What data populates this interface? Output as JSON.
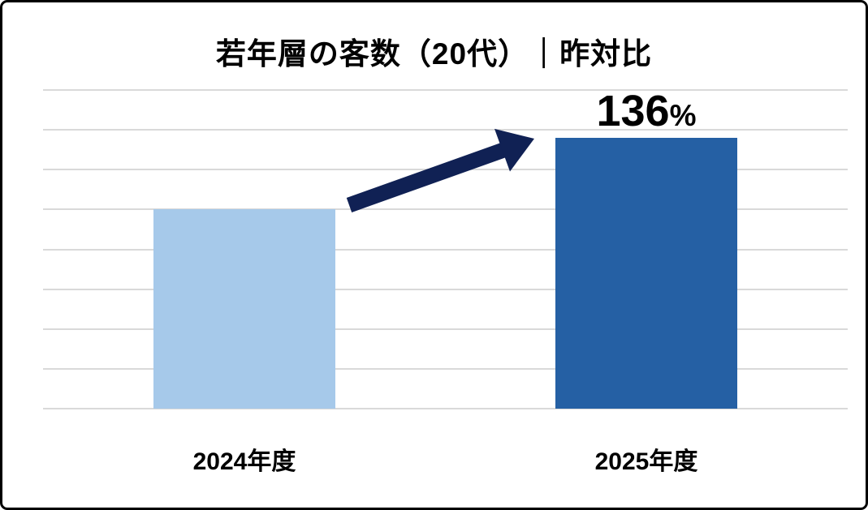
{
  "chart_data": {
    "type": "bar",
    "title": "若年層の客数（20代）｜昨対比",
    "categories": [
      "2024年度",
      "2025年度"
    ],
    "values": [
      100,
      136
    ],
    "unit": "%",
    "ylim": [
      0,
      160
    ],
    "grid_step": 20,
    "grid": true,
    "legend": "none",
    "y_axis_labels_visible": false,
    "data_label": {
      "value": "136",
      "unit": "%",
      "on_category": "2025年度"
    },
    "annotations": [
      "upward arrow from 2024 bar to 2025 bar"
    ],
    "colors": {
      "bar_2024": "#A6C9EA",
      "bar_2025": "#2560A4",
      "arrow": "#102154",
      "gridline": "#D9D9D9",
      "text": "#000000",
      "frame_border": "#000000",
      "background": "#FFFFFF"
    }
  }
}
